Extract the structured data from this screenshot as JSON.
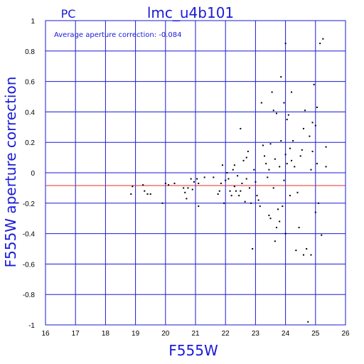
{
  "header": {
    "left_tag": "PC",
    "title": "lmc_u4b101"
  },
  "annotation": {
    "text": "Average aperture correction:  -0.084"
  },
  "colors": {
    "grid": "#1a1ad8",
    "text": "#1a1ad8",
    "points": "#000000",
    "mean_line": "#e03030"
  },
  "chart_data": {
    "type": "scatter",
    "title": "lmc_u4b101",
    "xlabel": "F555W",
    "ylabel": "F555W aperture correction",
    "xlim": [
      16,
      26
    ],
    "ylim": [
      -1,
      1
    ],
    "x_ticks": [
      "16",
      "17",
      "18",
      "19",
      "20",
      "21",
      "22",
      "23",
      "24",
      "25",
      "26"
    ],
    "y_ticks": [
      "1",
      "0.8",
      "0.6",
      "0.4",
      "0.2",
      "0",
      "-0.2",
      "-0.4",
      "-0.6",
      "-0.8",
      "-1"
    ],
    "grid": true,
    "reference_line": {
      "y": -0.084
    },
    "points": [
      [
        18.85,
        -0.14
      ],
      [
        18.9,
        -0.09
      ],
      [
        19.25,
        -0.08
      ],
      [
        19.3,
        -0.12
      ],
      [
        19.4,
        -0.14
      ],
      [
        19.5,
        -0.14
      ],
      [
        19.9,
        -0.2
      ],
      [
        20.0,
        -0.07
      ],
      [
        20.1,
        -0.08
      ],
      [
        20.3,
        -0.07
      ],
      [
        20.6,
        -0.1
      ],
      [
        20.65,
        -0.13
      ],
      [
        20.7,
        -0.17
      ],
      [
        20.75,
        -0.1
      ],
      [
        20.85,
        -0.04
      ],
      [
        20.9,
        -0.11
      ],
      [
        20.95,
        -0.06
      ],
      [
        21.05,
        -0.04
      ],
      [
        21.1,
        -0.07
      ],
      [
        21.1,
        -0.22
      ],
      [
        21.3,
        -0.03
      ],
      [
        21.6,
        -0.03
      ],
      [
        21.75,
        -0.14
      ],
      [
        21.8,
        -0.12
      ],
      [
        21.85,
        -0.07
      ],
      [
        21.9,
        0.05
      ],
      [
        21.95,
        -0.2
      ],
      [
        22.0,
        -0.05
      ],
      [
        22.1,
        -0.04
      ],
      [
        22.15,
        -0.12
      ],
      [
        22.2,
        -0.15
      ],
      [
        22.25,
        0.02
      ],
      [
        22.3,
        0.05
      ],
      [
        22.3,
        -0.09
      ],
      [
        22.35,
        -0.12
      ],
      [
        22.4,
        -0.02
      ],
      [
        22.45,
        -0.15
      ],
      [
        22.5,
        0.29
      ],
      [
        22.5,
        -0.12
      ],
      [
        22.55,
        -0.07
      ],
      [
        22.6,
        0.08
      ],
      [
        22.65,
        -0.19
      ],
      [
        22.7,
        0.1
      ],
      [
        22.7,
        -0.04
      ],
      [
        22.75,
        0.14
      ],
      [
        22.8,
        -0.1
      ],
      [
        22.85,
        -0.2
      ],
      [
        22.9,
        -0.5
      ],
      [
        22.95,
        0.02
      ],
      [
        23.0,
        -0.06
      ],
      [
        23.05,
        -0.15
      ],
      [
        23.1,
        -0.18
      ],
      [
        23.15,
        -0.22
      ],
      [
        23.2,
        0.46
      ],
      [
        23.25,
        0.18
      ],
      [
        23.3,
        0.11
      ],
      [
        23.35,
        0.06
      ],
      [
        23.4,
        -0.03
      ],
      [
        23.45,
        0.02
      ],
      [
        23.5,
        0.19
      ],
      [
        23.5,
        -0.3
      ],
      [
        23.55,
        0.53
      ],
      [
        23.6,
        -0.1
      ],
      [
        23.65,
        -0.45
      ],
      [
        23.65,
        0.09
      ],
      [
        23.7,
        0.39
      ],
      [
        23.7,
        -0.36
      ],
      [
        23.75,
        -0.24
      ],
      [
        23.8,
        0.04
      ],
      [
        23.8,
        -0.32
      ],
      [
        23.85,
        0.63
      ],
      [
        23.85,
        0.21
      ],
      [
        23.9,
        -0.22
      ],
      [
        23.95,
        0.46
      ],
      [
        23.95,
        -0.05
      ],
      [
        24.0,
        0.85
      ],
      [
        24.0,
        0.12
      ],
      [
        24.0,
        -0.4
      ],
      [
        24.05,
        0.35
      ],
      [
        24.05,
        0.06
      ],
      [
        24.1,
        0.38
      ],
      [
        24.15,
        0.16
      ],
      [
        24.15,
        -0.15
      ],
      [
        24.2,
        0.53
      ],
      [
        24.25,
        0.21
      ],
      [
        24.3,
        0.04
      ],
      [
        24.35,
        -0.51
      ],
      [
        24.4,
        -0.13
      ],
      [
        24.5,
        0.11
      ],
      [
        24.6,
        0.29
      ],
      [
        24.6,
        -0.54
      ],
      [
        24.65,
        0.41
      ],
      [
        24.7,
        -0.5
      ],
      [
        24.75,
        -0.98
      ],
      [
        24.8,
        0.24
      ],
      [
        24.85,
        0.02
      ],
      [
        24.85,
        -0.54
      ],
      [
        24.9,
        0.33
      ],
      [
        24.9,
        0.14
      ],
      [
        24.95,
        0.58
      ],
      [
        25.0,
        0.31
      ],
      [
        25.0,
        -0.26
      ],
      [
        25.05,
        0.06
      ],
      [
        25.05,
        0.43
      ],
      [
        25.1,
        -0.2
      ],
      [
        25.15,
        0.85
      ],
      [
        25.2,
        -0.41
      ],
      [
        25.25,
        0.88
      ],
      [
        25.35,
        0.17
      ],
      [
        25.35,
        0.04
      ],
      [
        23.6,
        0.41
      ],
      [
        24.2,
        0.08
      ],
      [
        24.55,
        0.15
      ],
      [
        22.05,
        0.0
      ],
      [
        23.45,
        -0.28
      ],
      [
        24.45,
        -0.36
      ]
    ]
  }
}
